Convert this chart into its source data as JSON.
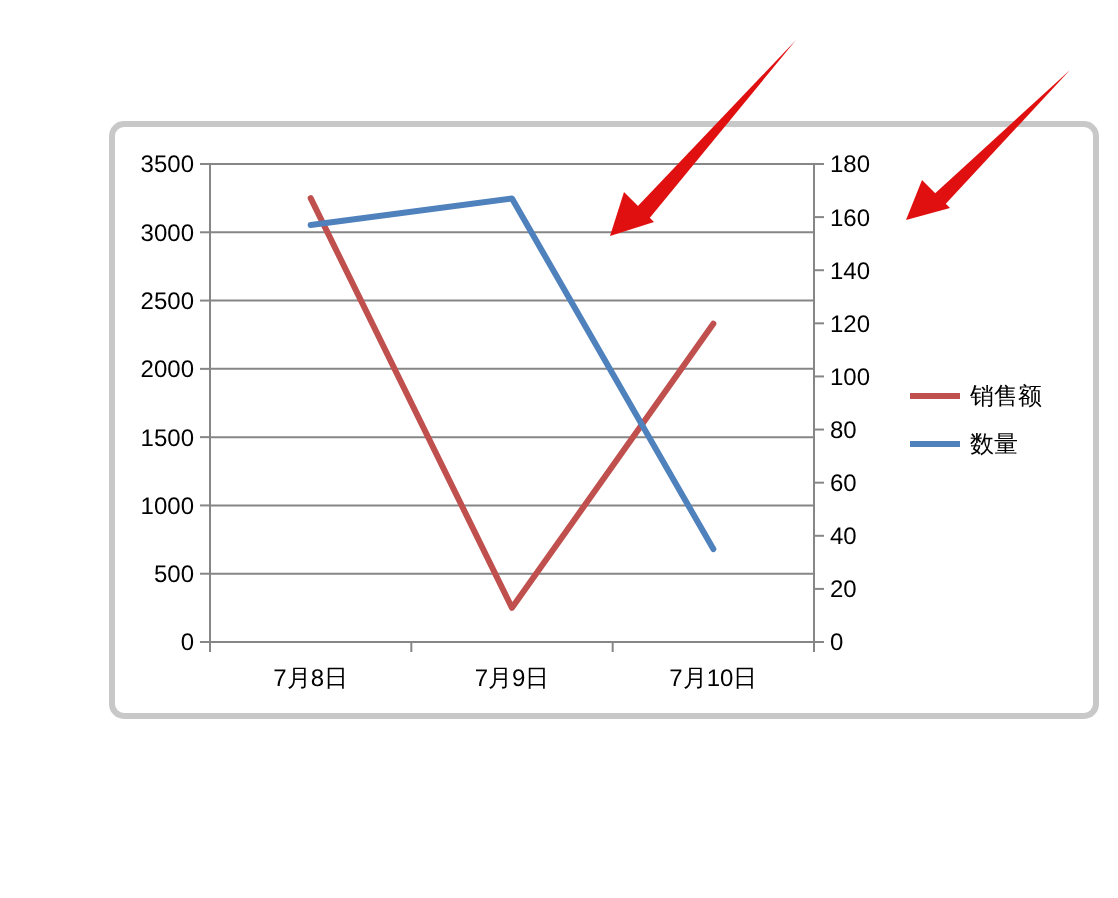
{
  "chart_data": {
    "type": "line",
    "categories": [
      "7月8日",
      "7月9日",
      "7月10日"
    ],
    "series": [
      {
        "name": "销售额",
        "color": "#c0504d",
        "values": [
          3250,
          250,
          2330
        ]
      },
      {
        "name": "数量",
        "color": "#4f81bd",
        "values": [
          157,
          167,
          35
        ],
        "axis": "y2"
      }
    ],
    "ylim": [
      0,
      3500
    ],
    "yticks": [
      0,
      500,
      1000,
      1500,
      2000,
      2500,
      3000,
      3500
    ],
    "y2lim": [
      0,
      180
    ],
    "y2ticks": [
      0,
      20,
      40,
      60,
      80,
      100,
      120,
      140,
      160,
      180
    ],
    "grid": "y",
    "legend": "right",
    "line_style": "solid"
  }
}
